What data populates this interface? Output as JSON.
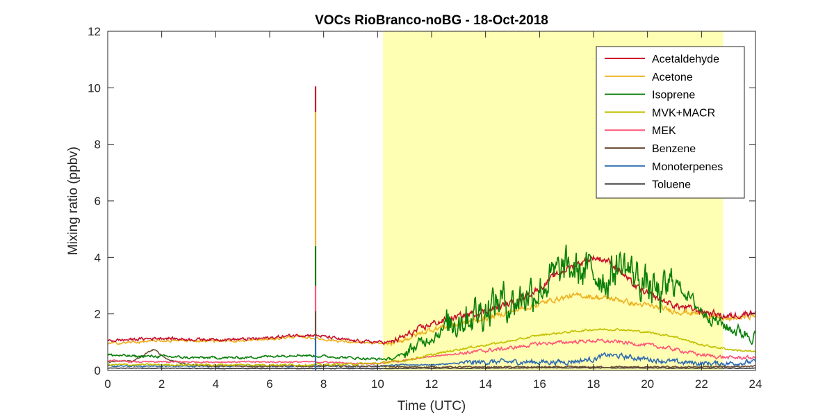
{
  "chart_data": {
    "type": "line",
    "title": "VOCs RioBranco-noBG - 18-Oct-2018",
    "xlabel": "Time (UTC)",
    "ylabel": "Mixing ratio (ppbv)",
    "xlim": [
      0,
      24
    ],
    "ylim": [
      0,
      12
    ],
    "xticks": [
      0,
      2,
      4,
      6,
      8,
      10,
      12,
      14,
      16,
      18,
      20,
      22,
      24
    ],
    "yticks": [
      0,
      2,
      4,
      6,
      8,
      10,
      12
    ],
    "grid": false,
    "legend_position": "top-right",
    "daytime_shading": {
      "x_start": 10.2,
      "x_end": 22.8,
      "color": "#ffffb3"
    },
    "spike": {
      "x": 7.7,
      "ymax": 10.05
    },
    "series": [
      {
        "name": "Acetaldehyde",
        "color": "#c8102e",
        "x": [
          0,
          1,
          2,
          3,
          4,
          5,
          6,
          7,
          7.6,
          8,
          9,
          10,
          10.5,
          11,
          12,
          13,
          14,
          15,
          16,
          16.5,
          17,
          17.5,
          18,
          18.5,
          19,
          19.5,
          20,
          21,
          22,
          23,
          24
        ],
        "y": [
          1.05,
          1.1,
          1.15,
          1.1,
          1.1,
          1.1,
          1.15,
          1.25,
          1.25,
          1.2,
          1.05,
          1.0,
          1.0,
          1.2,
          1.65,
          1.9,
          2.1,
          2.4,
          2.9,
          3.3,
          3.6,
          3.8,
          4.0,
          3.9,
          3.5,
          3.0,
          2.7,
          2.3,
          2.1,
          1.9,
          2.1
        ]
      },
      {
        "name": "Acetone",
        "color": "#edb120",
        "x": [
          0,
          1,
          2,
          3,
          4,
          5,
          6,
          7,
          7.6,
          8,
          9,
          10,
          10.5,
          11,
          12,
          13,
          14,
          15,
          16,
          16.5,
          17,
          17.5,
          18,
          18.5,
          19,
          19.5,
          20,
          21,
          22,
          23,
          24
        ],
        "y": [
          0.95,
          1.0,
          1.05,
          1.05,
          1.05,
          1.05,
          1.1,
          1.2,
          1.15,
          1.1,
          1.0,
          0.95,
          0.95,
          1.1,
          1.45,
          1.65,
          1.85,
          2.1,
          2.35,
          2.5,
          2.6,
          2.65,
          2.6,
          2.55,
          2.5,
          2.35,
          2.3,
          2.1,
          2.0,
          1.8,
          1.95
        ]
      },
      {
        "name": "Isoprene",
        "color": "#0a7f0a",
        "x": [
          0,
          1,
          2,
          3,
          4,
          5,
          6,
          7,
          8,
          9,
          10,
          10.5,
          11,
          11.5,
          12,
          12.5,
          13,
          13.5,
          14,
          14.5,
          15,
          15.5,
          16,
          16.5,
          17,
          17.5,
          18,
          18.5,
          19,
          19.5,
          20,
          20.5,
          21,
          22,
          23,
          24
        ],
        "y": [
          0.55,
          0.5,
          0.5,
          0.45,
          0.45,
          0.45,
          0.5,
          0.55,
          0.5,
          0.45,
          0.4,
          0.4,
          0.6,
          0.9,
          1.2,
          1.5,
          1.9,
          2.0,
          2.2,
          2.5,
          2.4,
          2.7,
          2.9,
          3.3,
          3.6,
          3.5,
          3.5,
          3.2,
          3.8,
          3.4,
          3.0,
          2.6,
          3.2,
          2.1,
          1.5,
          1.2
        ]
      },
      {
        "name": "MVK+MACR",
        "color": "#c2c000",
        "x": [
          0,
          2,
          4,
          6,
          8,
          10,
          11,
          12,
          13,
          14,
          15,
          16,
          17,
          18,
          19,
          20,
          21,
          22,
          23,
          24
        ],
        "y": [
          0.2,
          0.2,
          0.2,
          0.2,
          0.2,
          0.25,
          0.35,
          0.55,
          0.75,
          0.9,
          1.05,
          1.25,
          1.35,
          1.45,
          1.45,
          1.35,
          1.2,
          0.9,
          0.75,
          0.65
        ]
      },
      {
        "name": "MEK",
        "color": "#ff5577",
        "x": [
          0,
          1,
          2,
          3,
          4,
          5,
          6,
          7,
          8,
          9,
          10,
          11,
          12,
          13,
          14,
          15,
          16,
          17,
          18,
          19,
          20,
          21,
          22,
          23,
          24
        ],
        "y": [
          0.35,
          0.3,
          0.3,
          0.3,
          0.3,
          0.3,
          0.3,
          0.3,
          0.3,
          0.25,
          0.25,
          0.35,
          0.5,
          0.6,
          0.7,
          0.8,
          0.95,
          1.0,
          1.05,
          1.0,
          0.9,
          0.75,
          0.55,
          0.45,
          0.45
        ]
      },
      {
        "name": "Benzene",
        "color": "#6e5038",
        "x": [
          0,
          1,
          1.7,
          2.2,
          3,
          4,
          5,
          6,
          7,
          8,
          9,
          10,
          11,
          12,
          14,
          16,
          18,
          20,
          22,
          24
        ],
        "y": [
          0.3,
          0.35,
          0.75,
          0.4,
          0.2,
          0.15,
          0.15,
          0.15,
          0.15,
          0.15,
          0.15,
          0.15,
          0.12,
          0.12,
          0.12,
          0.12,
          0.12,
          0.12,
          0.12,
          0.15
        ]
      },
      {
        "name": "Monoterpenes",
        "color": "#2e6ab0",
        "x": [
          0,
          2,
          4,
          6,
          8,
          10,
          11,
          12,
          13,
          14,
          15,
          16,
          17,
          18,
          18.5,
          19,
          20,
          21,
          22,
          23,
          24
        ],
        "y": [
          0.15,
          0.15,
          0.15,
          0.15,
          0.15,
          0.15,
          0.2,
          0.2,
          0.25,
          0.3,
          0.3,
          0.3,
          0.3,
          0.4,
          0.55,
          0.5,
          0.4,
          0.3,
          0.25,
          0.25,
          0.3
        ]
      },
      {
        "name": "Toluene",
        "color": "#3a3a3a",
        "x": [
          0,
          2,
          4,
          6,
          8,
          10,
          12,
          14,
          16,
          18,
          20,
          22,
          24
        ],
        "y": [
          0.08,
          0.08,
          0.07,
          0.07,
          0.07,
          0.07,
          0.08,
          0.08,
          0.09,
          0.09,
          0.09,
          0.08,
          0.08
        ]
      }
    ]
  }
}
